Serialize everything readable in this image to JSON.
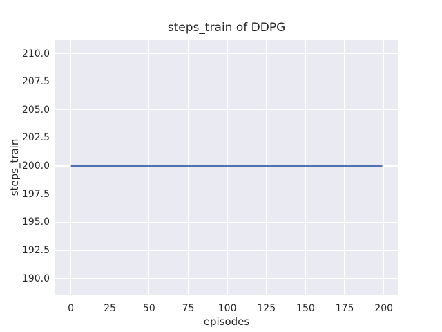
{
  "chart_data": {
    "type": "line",
    "title": "steps_train of DDPG",
    "xlabel": "episodes",
    "ylabel": "steps_train",
    "plot_background": "#eaeaf2",
    "grid": true,
    "grid_color": "#ffffff",
    "text_color": "#262626",
    "legend": false,
    "xlim": [
      -9.95,
      208.95
    ],
    "ylim": [
      188.5,
      211.2
    ],
    "xticks": {
      "values": [
        0,
        25,
        50,
        75,
        100,
        125,
        150,
        175,
        200
      ],
      "labels": [
        "0",
        "25",
        "50",
        "75",
        "100",
        "125",
        "150",
        "175",
        "200"
      ]
    },
    "yticks": {
      "values": [
        190.0,
        192.5,
        195.0,
        197.5,
        200.0,
        202.5,
        205.0,
        207.5,
        210.0
      ],
      "labels": [
        "190.0",
        "192.5",
        "195.0",
        "197.5",
        "200.0",
        "202.5",
        "205.0",
        "207.5",
        "210.0"
      ]
    },
    "series": [
      {
        "name": "steps_train",
        "color": "#4c72b0",
        "line_width": 2,
        "x": [
          0,
          199
        ],
        "y": [
          200,
          200
        ],
        "constant_value": 200
      }
    ]
  }
}
